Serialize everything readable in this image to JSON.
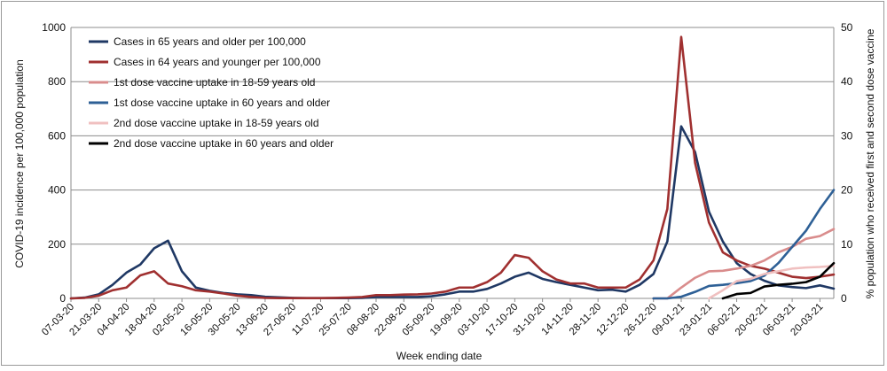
{
  "chart_data": {
    "type": "line",
    "xlabel": "Week ending date",
    "ylabel_left": "COVID-19 incidence per 100,000 population",
    "ylabel_right": "% population who received  first and second dose vaccine",
    "ylim_left": [
      0,
      1000
    ],
    "ylim_right": [
      0,
      50
    ],
    "yticks_left": [
      "0",
      "200",
      "400",
      "600",
      "800",
      "1000"
    ],
    "yticks_right": [
      "0",
      "10",
      "20",
      "30",
      "40",
      "50"
    ],
    "grid": "horizontal",
    "legend": "top-left",
    "x_tick_labels": [
      "07-03-20",
      "21-03-20",
      "04-04-20",
      "18-04-20",
      "02-05-20",
      "16-05-20",
      "30-05-20",
      "13-06-20",
      "27-06-20",
      "11-07-20",
      "25-07-20",
      "08-08-20",
      "22-08-20",
      "05-09-20",
      "19-09-20",
      "03-10-20",
      "17-10-20",
      "31-10-20",
      "14-11-20",
      "28-11-20",
      "12-12-20",
      "26-12-20",
      "09-01-21",
      "23-01-21",
      "06-02-21",
      "20-02-21",
      "06-03-21",
      "20-03-21"
    ],
    "x": [
      "07-03-20",
      "14-03-20",
      "21-03-20",
      "28-03-20",
      "04-04-20",
      "11-04-20",
      "18-04-20",
      "25-04-20",
      "02-05-20",
      "09-05-20",
      "16-05-20",
      "23-05-20",
      "30-05-20",
      "06-06-20",
      "13-06-20",
      "20-06-20",
      "27-06-20",
      "04-07-20",
      "11-07-20",
      "18-07-20",
      "25-07-20",
      "01-08-20",
      "08-08-20",
      "15-08-20",
      "22-08-20",
      "29-08-20",
      "05-09-20",
      "12-09-20",
      "19-09-20",
      "26-09-20",
      "03-10-20",
      "10-10-20",
      "17-10-20",
      "24-10-20",
      "31-10-20",
      "07-11-20",
      "14-11-20",
      "21-11-20",
      "28-11-20",
      "05-12-20",
      "12-12-20",
      "19-12-20",
      "26-12-20",
      "02-01-21",
      "09-01-21",
      "16-01-21",
      "23-01-21",
      "30-01-21",
      "06-02-21",
      "13-02-21",
      "20-02-21",
      "27-02-21",
      "06-03-21",
      "13-03-21",
      "20-03-21",
      "27-03-21"
    ],
    "series": [
      {
        "name": "Cases in 65 years and older per 100,000",
        "axis": "left",
        "color": "#1f3864",
        "values": [
          0,
          3,
          15,
          50,
          95,
          125,
          185,
          213,
          100,
          40,
          28,
          20,
          15,
          12,
          6,
          4,
          2,
          1,
          1,
          1,
          1,
          2,
          5,
          5,
          5,
          5,
          8,
          15,
          25,
          25,
          35,
          55,
          80,
          95,
          72,
          60,
          50,
          40,
          30,
          32,
          25,
          50,
          90,
          210,
          635,
          540,
          320,
          210,
          130,
          90,
          65,
          48,
          42,
          38,
          48,
          36
        ]
      },
      {
        "name": "Cases in 64 years and younger per 100,000",
        "axis": "left",
        "color": "#a03030",
        "values": [
          0,
          2,
          10,
          30,
          40,
          85,
          100,
          55,
          45,
          30,
          25,
          18,
          10,
          5,
          2,
          1,
          1,
          1,
          1,
          2,
          3,
          5,
          12,
          12,
          14,
          15,
          18,
          25,
          40,
          40,
          60,
          95,
          160,
          150,
          100,
          70,
          55,
          55,
          40,
          40,
          40,
          70,
          140,
          330,
          965,
          500,
          280,
          170,
          140,
          120,
          110,
          95,
          80,
          75,
          80,
          88
        ]
      },
      {
        "name": "1st dose vaccine uptake in 18-59 years old",
        "axis": "right",
        "color": "#d98c8c",
        "values": [
          null,
          null,
          null,
          null,
          null,
          null,
          null,
          null,
          null,
          null,
          null,
          null,
          null,
          null,
          null,
          null,
          null,
          null,
          null,
          null,
          null,
          null,
          null,
          null,
          null,
          null,
          null,
          null,
          null,
          null,
          null,
          null,
          null,
          null,
          null,
          null,
          null,
          null,
          null,
          null,
          null,
          null,
          0,
          0,
          2,
          3.8,
          5,
          5.1,
          5.5,
          6,
          7,
          8.5,
          9.5,
          11,
          11.5,
          12.8
        ]
      },
      {
        "name": "1st dose vaccine uptake in 60 years and older",
        "axis": "right",
        "color": "#2e6096",
        "values": [
          null,
          null,
          null,
          null,
          null,
          null,
          null,
          null,
          null,
          null,
          null,
          null,
          null,
          null,
          null,
          null,
          null,
          null,
          null,
          null,
          null,
          null,
          null,
          null,
          null,
          null,
          null,
          null,
          null,
          null,
          null,
          null,
          null,
          null,
          null,
          null,
          null,
          null,
          null,
          null,
          null,
          null,
          0,
          0,
          0.3,
          1.2,
          2.3,
          2.5,
          2.8,
          3.2,
          4.2,
          6.5,
          9.5,
          12.5,
          16.5,
          20
        ]
      },
      {
        "name": "2nd dose vaccine uptake in 18-59 years old",
        "axis": "right",
        "color": "#f0c0c0",
        "values": [
          null,
          null,
          null,
          null,
          null,
          null,
          null,
          null,
          null,
          null,
          null,
          null,
          null,
          null,
          null,
          null,
          null,
          null,
          null,
          null,
          null,
          null,
          null,
          null,
          null,
          null,
          null,
          null,
          null,
          null,
          null,
          null,
          null,
          null,
          null,
          null,
          null,
          null,
          null,
          null,
          null,
          null,
          null,
          null,
          null,
          null,
          0,
          1.5,
          3.2,
          3.6,
          4.5,
          5,
          5.5,
          5.7,
          5.8,
          6
        ]
      },
      {
        "name": "2nd dose vaccine uptake in 60 years and older",
        "axis": "right",
        "color": "#000000",
        "values": [
          null,
          null,
          null,
          null,
          null,
          null,
          null,
          null,
          null,
          null,
          null,
          null,
          null,
          null,
          null,
          null,
          null,
          null,
          null,
          null,
          null,
          null,
          null,
          null,
          null,
          null,
          null,
          null,
          null,
          null,
          null,
          null,
          null,
          null,
          null,
          null,
          null,
          null,
          null,
          null,
          null,
          null,
          null,
          null,
          null,
          null,
          null,
          0,
          0.8,
          1,
          2.2,
          2.5,
          2.7,
          3,
          4,
          6.5
        ]
      }
    ]
  }
}
